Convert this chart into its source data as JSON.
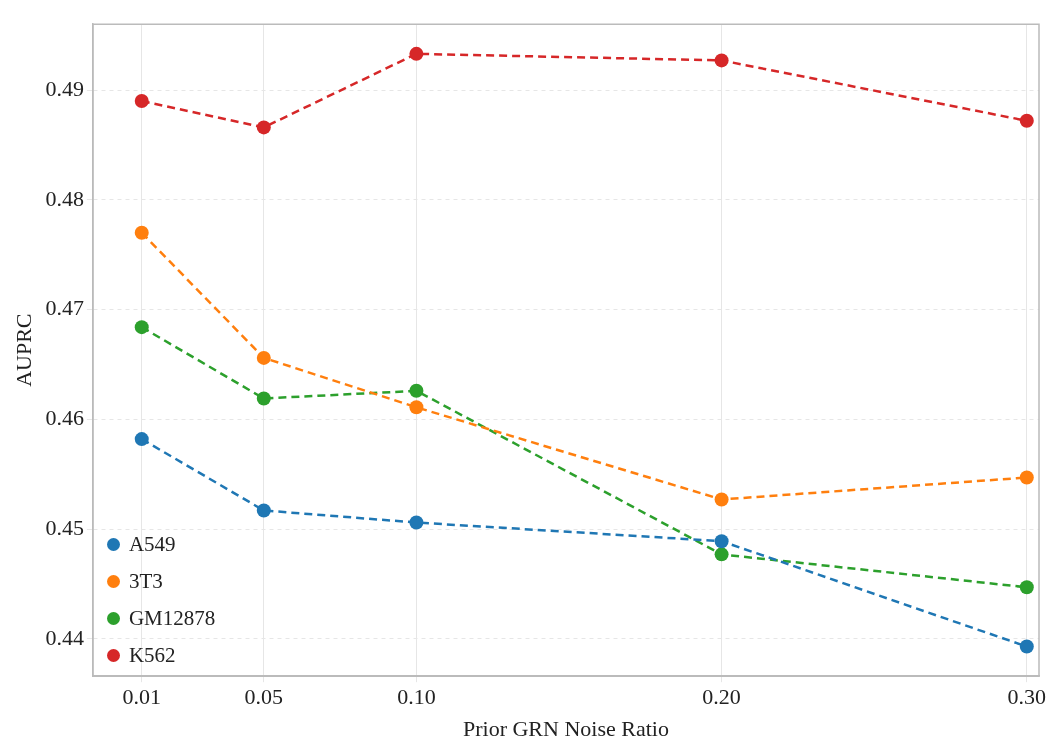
{
  "chart_data": {
    "type": "line",
    "xlabel": "Prior GRN Noise Ratio",
    "ylabel": "AUPRC",
    "x": [
      0.01,
      0.05,
      0.1,
      0.2,
      0.3
    ],
    "series": [
      {
        "name": "A549",
        "color": "#1f77b4",
        "values": [
          0.4582,
          0.4517,
          0.4506,
          0.4489,
          0.4393
        ]
      },
      {
        "name": "3T3",
        "color": "#ff7f0e",
        "values": [
          0.477,
          0.4656,
          0.4611,
          0.4527,
          0.4547
        ]
      },
      {
        "name": "GM12878",
        "color": "#2ca02c",
        "values": [
          0.4684,
          0.4619,
          0.4626,
          0.4477,
          0.4447
        ]
      },
      {
        "name": "K562",
        "color": "#d62728",
        "values": [
          0.489,
          0.4866,
          0.4933,
          0.4927,
          0.4872
        ]
      }
    ],
    "xlim": [
      -0.006,
      0.304
    ],
    "ylim": [
      0.4366,
      0.496
    ],
    "xticks": [
      0.01,
      0.05,
      {
        "value": 0.1,
        "label": "0.10"
      },
      {
        "value": 0.2,
        "label": "0.20"
      },
      {
        "value": 0.3,
        "label": "0.30"
      }
    ],
    "yticks": [
      0.44,
      0.45,
      0.46,
      0.47,
      0.48,
      0.49
    ],
    "grid": true,
    "legend": "bottom left",
    "marker": "circle",
    "line_style": "dashed"
  }
}
